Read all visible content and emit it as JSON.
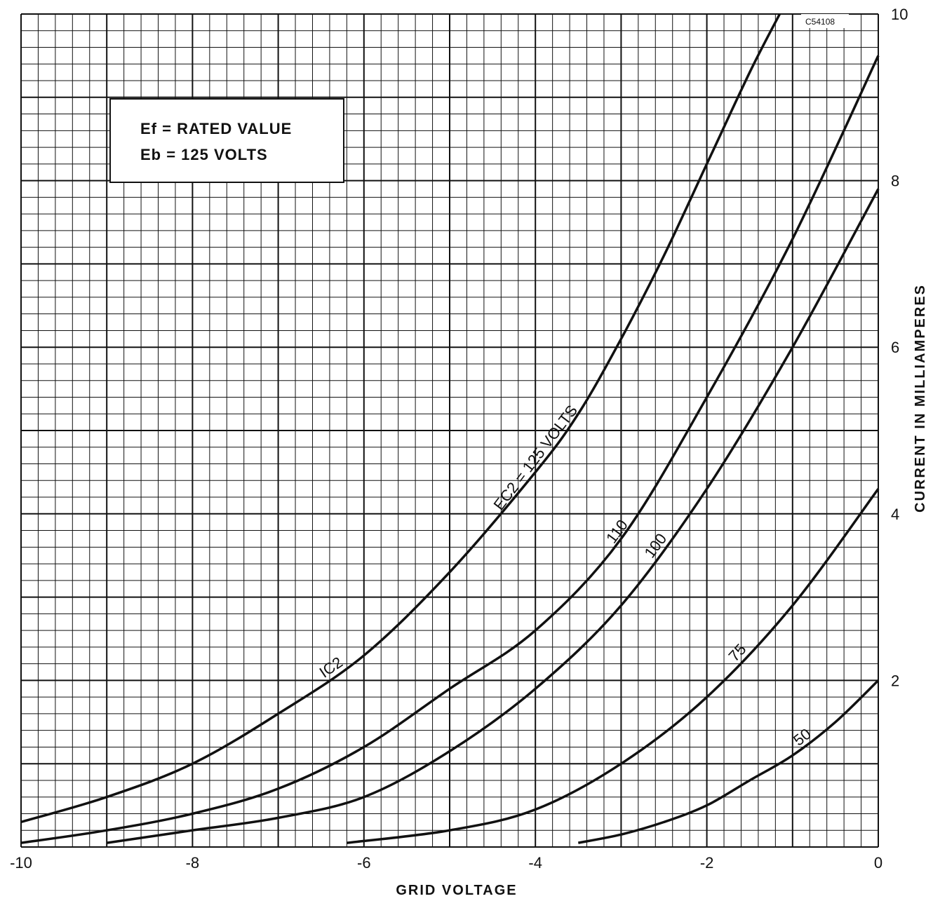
{
  "chart_data": {
    "type": "line",
    "xlabel": "GRID VOLTAGE",
    "ylabel": "CURRENT IN MILLIAMPERES",
    "xlim": [
      -10,
      0
    ],
    "ylim": [
      0,
      10
    ],
    "x_ticks": [
      "-10",
      "-8",
      "-6",
      "-4",
      "-2",
      "0"
    ],
    "y_ticks": [
      "2",
      "4",
      "6",
      "8",
      "10"
    ],
    "grid": true,
    "figure_code": "C54108",
    "conditions": {
      "ef": "Ef = RATED VALUE",
      "eb": "Eb = 125 VOLTS"
    },
    "curve_label": "IC2",
    "series": [
      {
        "name": "EC2 = 125 VOLTS",
        "x": [
          -10,
          -9,
          -8,
          -7,
          -6,
          -5,
          -4,
          -3.5,
          -3,
          -2.5,
          -2,
          -1.5,
          -1.15
        ],
        "y": [
          0.3,
          0.6,
          1.0,
          1.6,
          2.3,
          3.3,
          4.5,
          5.2,
          6.1,
          7.1,
          8.2,
          9.3,
          10.0
        ]
      },
      {
        "name": "110",
        "x": [
          -10,
          -9,
          -8,
          -7,
          -6,
          -5,
          -4,
          -3,
          -2,
          -1,
          0
        ],
        "y": [
          0.05,
          0.2,
          0.4,
          0.7,
          1.2,
          1.9,
          2.6,
          3.7,
          5.4,
          7.3,
          9.5
        ]
      },
      {
        "name": "100",
        "x": [
          -9,
          -8,
          -7,
          -6,
          -5,
          -4,
          -3,
          -2,
          -1,
          0
        ],
        "y": [
          0.05,
          0.2,
          0.35,
          0.6,
          1.15,
          1.9,
          2.9,
          4.3,
          6.0,
          7.9
        ]
      },
      {
        "name": "75",
        "x": [
          -6.2,
          -5,
          -4,
          -3,
          -2,
          -1,
          0
        ],
        "y": [
          0.05,
          0.2,
          0.45,
          1.0,
          1.8,
          2.9,
          4.3
        ]
      },
      {
        "name": "50",
        "x": [
          -3.5,
          -3,
          -2.5,
          -2,
          -1.5,
          -1,
          -0.5,
          0
        ],
        "y": [
          0.05,
          0.15,
          0.3,
          0.5,
          0.8,
          1.1,
          1.5,
          2.0
        ]
      }
    ]
  }
}
